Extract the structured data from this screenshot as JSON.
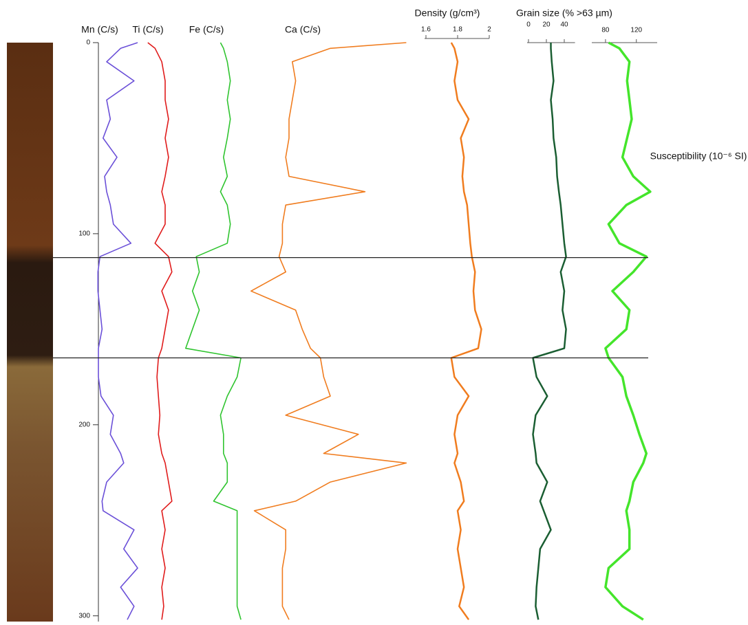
{
  "chart_data": {
    "type": "line",
    "y_inverted": true,
    "ylim": [
      0,
      303
    ],
    "yticks": [
      0,
      100,
      200,
      300
    ],
    "depth": [
      0,
      3,
      10,
      20,
      30,
      40,
      50,
      60,
      70,
      78,
      85,
      95,
      105,
      112,
      120,
      130,
      140,
      150,
      160,
      165,
      175,
      185,
      195,
      205,
      215,
      220,
      230,
      240,
      245,
      255,
      265,
      275,
      285,
      295,
      302
    ],
    "boundaries": [
      112.5,
      165
    ],
    "series": [
      {
        "name": "Mn (C/s)",
        "color": "#6a4fd8",
        "xlim": [
          0,
          100
        ],
        "values": [
          80,
          47,
          20,
          73,
          20,
          27,
          13,
          40,
          16,
          20,
          27,
          33,
          67,
          7,
          3,
          3,
          7,
          11,
          4,
          4,
          4,
          9,
          33,
          27,
          47,
          53,
          20,
          11,
          13,
          73,
          53,
          80,
          47,
          73,
          60
        ]
      },
      {
        "name": "Ti (C/s)",
        "color": "#e01b1b",
        "xlim": [
          0,
          100
        ],
        "values": [
          14,
          29,
          43,
          50,
          50,
          57,
          50,
          57,
          50,
          43,
          50,
          50,
          29,
          57,
          64,
          43,
          57,
          50,
          43,
          36,
          33,
          36,
          39,
          36,
          43,
          50,
          57,
          64,
          43,
          50,
          43,
          50,
          43,
          47,
          43
        ]
      },
      {
        "name": "Fe (C/s)",
        "color": "#2fc42f",
        "xlim": [
          0,
          100
        ],
        "values": [
          64,
          68,
          73,
          77,
          73,
          77,
          73,
          68,
          73,
          64,
          73,
          77,
          73,
          32,
          36,
          27,
          36,
          27,
          18,
          91,
          86,
          73,
          64,
          68,
          68,
          73,
          73,
          55,
          86,
          86,
          86,
          86,
          86,
          86,
          91
        ]
      },
      {
        "name": "Ca (C/s)",
        "color": "#f07c1e",
        "xlim": [
          0,
          100
        ],
        "values": [
          96,
          50,
          27,
          29,
          27,
          25,
          25,
          23,
          25,
          71,
          23,
          21,
          21,
          19,
          23,
          2,
          29,
          33,
          38,
          44,
          46,
          50,
          23,
          67,
          46,
          96,
          50,
          29,
          4,
          23,
          23,
          21,
          21,
          21,
          25
        ]
      },
      {
        "name": "Density (g/cm³)",
        "color": "#f07c1e",
        "xlim": [
          1.6,
          2.0
        ],
        "xticks": [
          1.6,
          1.8,
          2
        ],
        "values": [
          1.76,
          1.78,
          1.8,
          1.78,
          1.8,
          1.87,
          1.82,
          1.84,
          1.83,
          1.84,
          1.86,
          1.87,
          1.88,
          1.89,
          1.91,
          1.9,
          1.91,
          1.95,
          1.93,
          1.76,
          1.78,
          1.87,
          1.8,
          1.78,
          1.8,
          1.78,
          1.82,
          1.84,
          1.8,
          1.82,
          1.8,
          1.82,
          1.84,
          1.81,
          1.87
        ]
      },
      {
        "name": "Grain size (% >63 µm)",
        "color": "#1a5e32",
        "xlim": [
          0,
          52
        ],
        "xticks": [
          0,
          20,
          40
        ],
        "values": [
          25,
          25,
          26,
          28,
          25,
          27,
          28,
          31,
          32,
          34,
          36,
          38,
          40,
          42,
          36,
          40,
          38,
          42,
          40,
          5,
          9,
          21,
          8,
          5,
          8,
          9,
          21,
          13,
          17,
          25,
          13,
          11,
          9,
          8,
          11
        ]
      },
      {
        "name": "Susceptibility (10⁻⁶ SI)",
        "color": "#44e52b",
        "xlim": [
          64,
          147
        ],
        "xticks": [
          80,
          120
        ],
        "values": [
          84,
          98,
          111,
          108,
          111,
          114,
          108,
          102,
          116,
          138,
          107,
          84,
          98,
          133,
          116,
          89,
          111,
          107,
          80,
          84,
          102,
          107,
          116,
          124,
          133,
          129,
          116,
          111,
          107,
          111,
          111,
          84,
          80,
          102,
          129
        ]
      }
    ]
  }
}
